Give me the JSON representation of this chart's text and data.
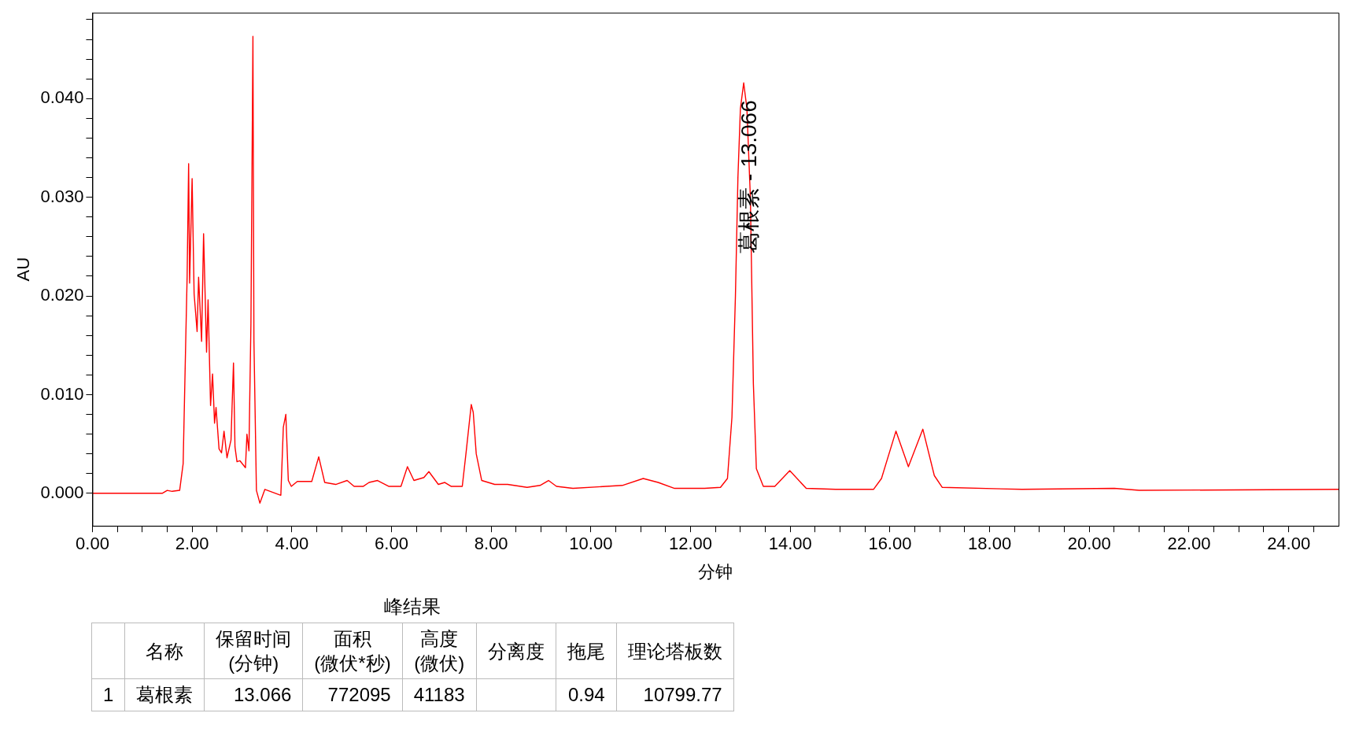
{
  "chart_data": {
    "type": "line",
    "xlabel": "分钟",
    "ylabel": "AU",
    "xlim": [
      0,
      25
    ],
    "ylim": [
      -0.0033,
      0.0487
    ],
    "xticks": [
      {
        "value": 0,
        "label": "0.00"
      },
      {
        "value": 0.5,
        "label": null
      },
      {
        "value": 1,
        "label": null
      },
      {
        "value": 1.5,
        "label": null
      },
      {
        "value": 2,
        "label": "2.00"
      },
      {
        "value": 2.5,
        "label": null
      },
      {
        "value": 3,
        "label": null
      },
      {
        "value": 3.5,
        "label": null
      },
      {
        "value": 4,
        "label": "4.00"
      },
      {
        "value": 4.5,
        "label": null
      },
      {
        "value": 5,
        "label": null
      },
      {
        "value": 5.5,
        "label": null
      },
      {
        "value": 6,
        "label": "6.00"
      },
      {
        "value": 6.5,
        "label": null
      },
      {
        "value": 7,
        "label": null
      },
      {
        "value": 7.5,
        "label": null
      },
      {
        "value": 8,
        "label": "8.00"
      },
      {
        "value": 8.5,
        "label": null
      },
      {
        "value": 9,
        "label": null
      },
      {
        "value": 9.5,
        "label": null
      },
      {
        "value": 10,
        "label": "10.00"
      },
      {
        "value": 10.5,
        "label": null
      },
      {
        "value": 11,
        "label": null
      },
      {
        "value": 11.5,
        "label": null
      },
      {
        "value": 12,
        "label": "12.00"
      },
      {
        "value": 12.5,
        "label": null
      },
      {
        "value": 13,
        "label": null
      },
      {
        "value": 13.5,
        "label": null
      },
      {
        "value": 14,
        "label": "14.00"
      },
      {
        "value": 14.5,
        "label": null
      },
      {
        "value": 15,
        "label": null
      },
      {
        "value": 15.5,
        "label": null
      },
      {
        "value": 16,
        "label": "16.00"
      },
      {
        "value": 16.5,
        "label": null
      },
      {
        "value": 17,
        "label": null
      },
      {
        "value": 17.5,
        "label": null
      },
      {
        "value": 18,
        "label": "18.00"
      },
      {
        "value": 18.5,
        "label": null
      },
      {
        "value": 19,
        "label": null
      },
      {
        "value": 19.5,
        "label": null
      },
      {
        "value": 20,
        "label": "20.00"
      },
      {
        "value": 20.5,
        "label": null
      },
      {
        "value": 21,
        "label": null
      },
      {
        "value": 21.5,
        "label": null
      },
      {
        "value": 22,
        "label": "22.00"
      },
      {
        "value": 22.5,
        "label": null
      },
      {
        "value": 23,
        "label": null
      },
      {
        "value": 23.5,
        "label": null
      },
      {
        "value": 24,
        "label": "24.00"
      },
      {
        "value": 24.5,
        "label": null
      }
    ],
    "yticks": [
      {
        "value": 0,
        "label": "0.000"
      },
      {
        "value": 0.002,
        "label": null
      },
      {
        "value": 0.004,
        "label": null
      },
      {
        "value": 0.006,
        "label": null
      },
      {
        "value": 0.008,
        "label": null
      },
      {
        "value": 0.01,
        "label": "0.010"
      },
      {
        "value": 0.012,
        "label": null
      },
      {
        "value": 0.014,
        "label": null
      },
      {
        "value": 0.016,
        "label": null
      },
      {
        "value": 0.018,
        "label": null
      },
      {
        "value": 0.02,
        "label": "0.020"
      },
      {
        "value": 0.022,
        "label": null
      },
      {
        "value": 0.024,
        "label": null
      },
      {
        "value": 0.026,
        "label": null
      },
      {
        "value": 0.028,
        "label": null
      },
      {
        "value": 0.03,
        "label": "0.030"
      },
      {
        "value": 0.032,
        "label": null
      },
      {
        "value": 0.034,
        "label": null
      },
      {
        "value": 0.036,
        "label": null
      },
      {
        "value": 0.038,
        "label": null
      },
      {
        "value": 0.04,
        "label": "0.040"
      },
      {
        "value": 0.042,
        "label": null
      },
      {
        "value": 0.044,
        "label": null
      },
      {
        "value": 0.046,
        "label": null
      },
      {
        "value": 0.048,
        "label": null
      }
    ],
    "grid": false,
    "legend": false,
    "marker": "none",
    "line_style": "solid",
    "series": [
      {
        "color": "#ff0000",
        "x": [
          0,
          1.4,
          1.5,
          1.6,
          1.75,
          1.82,
          1.87,
          1.9,
          1.93,
          1.95,
          2.0,
          2.04,
          2.1,
          2.13,
          2.19,
          2.23,
          2.29,
          2.32,
          2.37,
          2.41,
          2.45,
          2.48,
          2.54,
          2.59,
          2.64,
          2.7,
          2.78,
          2.83,
          2.86,
          2.9,
          2.96,
          3.07,
          3.1,
          3.14,
          3.18,
          3.22,
          3.24,
          3.29,
          3.36,
          3.46,
          3.78,
          3.83,
          3.88,
          3.93,
          3.99,
          4.11,
          4.4,
          4.54,
          4.66,
          4.88,
          5.11,
          5.25,
          5.43,
          5.55,
          5.72,
          5.95,
          6.19,
          6.32,
          6.45,
          6.65,
          6.75,
          6.94,
          7.07,
          7.2,
          7.42,
          7.5,
          7.6,
          7.64,
          7.7,
          7.81,
          8.07,
          8.33,
          8.72,
          8.98,
          9.15,
          9.31,
          9.64,
          10.3,
          10.63,
          11.05,
          11.35,
          11.68,
          12.28,
          12.6,
          12.74,
          12.83,
          12.9,
          12.95,
          13.0,
          13.066,
          13.13,
          13.2,
          13.26,
          13.32,
          13.46,
          13.69,
          13.99,
          14.32,
          14.91,
          15.67,
          15.83,
          16.12,
          16.37,
          16.66,
          16.89,
          17.05,
          18.65,
          20.5,
          21,
          25
        ],
        "values": [
          0,
          0,
          0.0003,
          0.0002,
          0.0003,
          0.003,
          0.015,
          0.022,
          0.0334,
          0.0213,
          0.0319,
          0.0202,
          0.0164,
          0.0219,
          0.0154,
          0.0263,
          0.0143,
          0.0196,
          0.0089,
          0.0121,
          0.0071,
          0.0087,
          0.0045,
          0.0041,
          0.0063,
          0.0036,
          0.0054,
          0.0132,
          0.0047,
          0.0032,
          0.0033,
          0.0026,
          0.006,
          0.0043,
          0.0172,
          0.0463,
          0.0155,
          0.0003,
          -0.001,
          0.0004,
          -0.0002,
          0.0067,
          0.008,
          0.0013,
          0.0007,
          0.0012,
          0.0012,
          0.0037,
          0.0011,
          0.0009,
          0.0013,
          0.0007,
          0.0007,
          0.0011,
          0.0013,
          0.0007,
          0.0007,
          0.0027,
          0.0013,
          0.0016,
          0.0022,
          0.0009,
          0.0011,
          0.0007,
          0.0007,
          0.0043,
          0.009,
          0.0082,
          0.004,
          0.0013,
          0.0009,
          0.0009,
          0.0006,
          0.0008,
          0.0013,
          0.0007,
          0.0005,
          0.0007,
          0.0008,
          0.0015,
          0.0011,
          0.0005,
          0.0005,
          0.0006,
          0.0015,
          0.0077,
          0.02,
          0.032,
          0.039,
          0.0416,
          0.039,
          0.03,
          0.0111,
          0.0025,
          0.0007,
          0.0007,
          0.0023,
          0.0005,
          0.0004,
          0.0004,
          0.0015,
          0.0063,
          0.0027,
          0.0065,
          0.0018,
          0.0006,
          0.0004,
          0.0005,
          0.0003,
          0.0004
        ]
      }
    ],
    "annotations": [
      {
        "text": "葛根素 - 13.066",
        "x": 13.066,
        "y": 0.0416
      },
      "峰结果",
      "名称",
      "保留时间\n(分钟)",
      "面积\n(微伏*秒)",
      "高度\n(微伏)",
      "分离度",
      "拖尾",
      "理论塔板数",
      "1",
      "葛根素",
      "13.066",
      "772095",
      "41183",
      "0.94",
      "10799.77"
    ]
  }
}
